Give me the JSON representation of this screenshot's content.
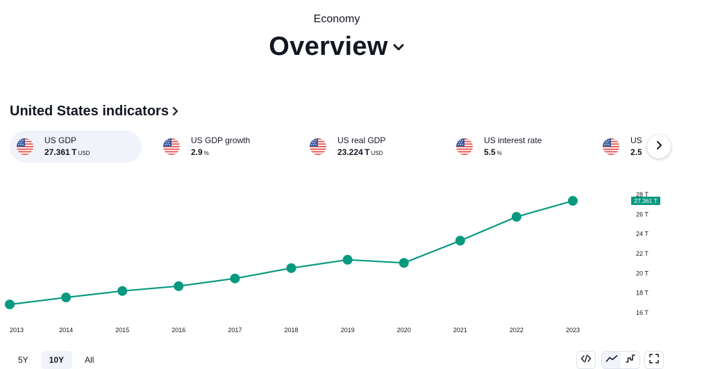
{
  "header": {
    "eyebrow": "Economy",
    "title": "Overview"
  },
  "section": {
    "title": "United States indicators"
  },
  "cards": [
    {
      "name": "US GDP",
      "value": "27.361",
      "suffix": "T",
      "unit": "USD",
      "flag": "us-flag-icon",
      "active": true
    },
    {
      "name": "US GDP growth",
      "value": "2.9",
      "suffix": "",
      "unit": "%",
      "flag": "us-flag-icon",
      "active": false
    },
    {
      "name": "US real GDP",
      "value": "23.224",
      "suffix": "T",
      "unit": "USD",
      "flag": "us-flag-icon",
      "active": false
    },
    {
      "name": "US interest rate",
      "value": "5.5",
      "suffix": "",
      "unit": "%",
      "flag": "us-flag-icon",
      "active": false
    },
    {
      "name": "US infla",
      "value": "2.5",
      "suffix": "",
      "unit": "%",
      "flag": "us-flag-icon",
      "active": false
    }
  ],
  "controls": {
    "ranges": [
      "5Y",
      "10Y",
      "All"
    ],
    "active_range": "10Y",
    "icons": [
      "code-embed-icon",
      "line-chart-icon",
      "step-chart-icon",
      "fullscreen-icon"
    ]
  },
  "colors": {
    "accent": "#089981",
    "text": "#131722",
    "muted": "#f0f3fa"
  },
  "chart_data": {
    "type": "line",
    "title": "",
    "xlabel": "",
    "ylabel": "",
    "x": [
      "2013",
      "2014",
      "2015",
      "2016",
      "2017",
      "2018",
      "2019",
      "2020",
      "2021",
      "2022",
      "2023"
    ],
    "series": [
      {
        "values": [
          16.84,
          17.55,
          18.21,
          18.7,
          19.48,
          20.53,
          21.38,
          21.06,
          23.32,
          25.74,
          27.361
        ]
      }
    ],
    "yticks": [
      16,
      18,
      20,
      22,
      24,
      26,
      28
    ],
    "ytick_labels": [
      "16 T",
      "18 T",
      "20 T",
      "22 T",
      "24 T",
      "26 T",
      "28 T"
    ],
    "ylim": [
      16,
      28
    ],
    "last_value_label": "27.361 T",
    "grid": false,
    "legend": "none"
  }
}
